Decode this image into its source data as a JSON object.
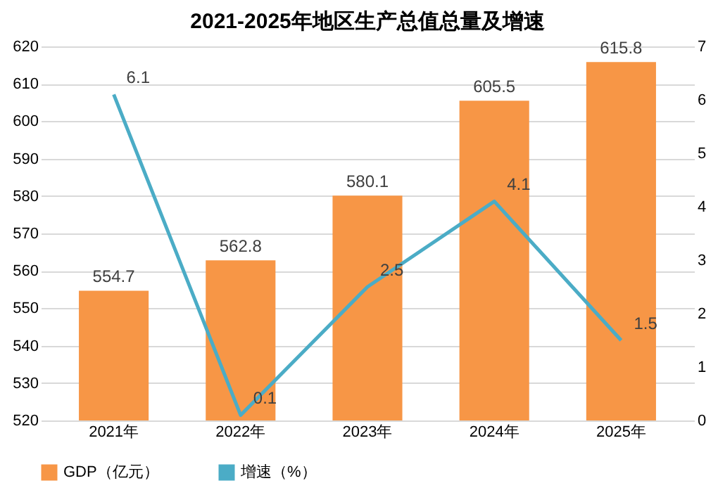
{
  "chart_data": {
    "type": "bar",
    "title": "2021-2025年地区生产总值总量及增速",
    "categories": [
      "2021年",
      "2022年",
      "2023年",
      "2024年",
      "2025年"
    ],
    "series": [
      {
        "name": "GDP（亿元）",
        "type": "bar",
        "color": "#f79646",
        "values": [
          554.7,
          562.8,
          580.1,
          605.5,
          615.8
        ]
      },
      {
        "name": "增速（%）",
        "type": "line",
        "axis": "y2",
        "color": "#4bacc6",
        "values": [
          6.1,
          0.1,
          2.5,
          4.1,
          1.5
        ]
      }
    ],
    "ylim": [
      520,
      620
    ],
    "yticks": [
      520,
      530,
      540,
      550,
      560,
      570,
      580,
      590,
      600,
      610,
      620
    ],
    "y2lim": [
      0,
      7
    ],
    "y2ticks": [
      0,
      1,
      2,
      3,
      4,
      5,
      6,
      7
    ],
    "grid": "y",
    "legend": "bottom",
    "data_labels": true,
    "marker": "none",
    "line_style": "solid"
  }
}
